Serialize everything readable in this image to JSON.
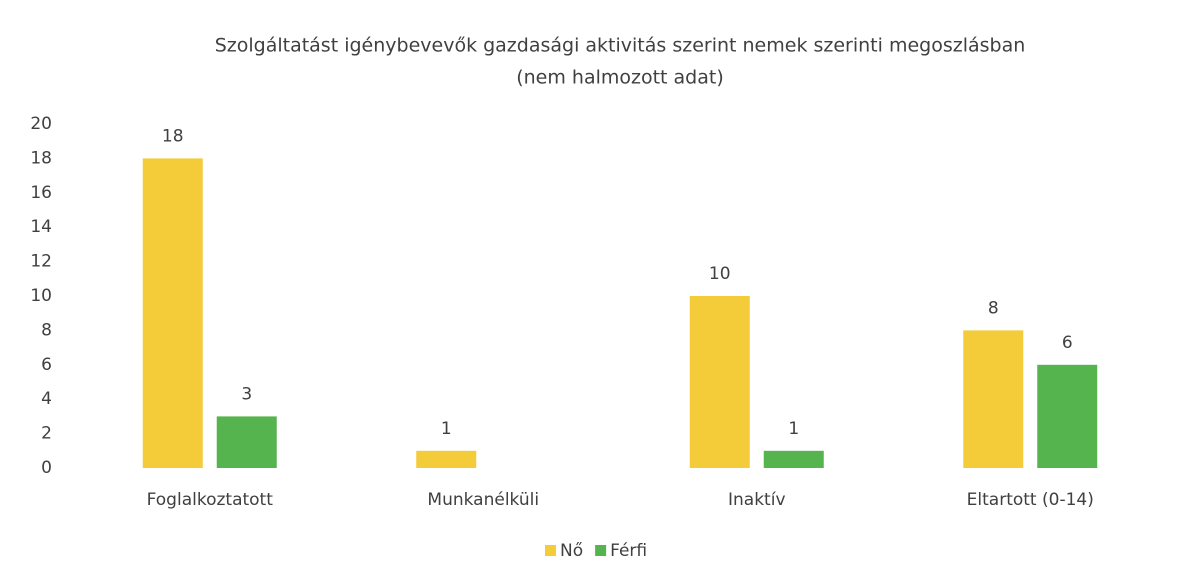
{
  "chart_data": {
    "type": "bar",
    "title": "Szolgáltatást igénybevevők gazdasági aktivitás szerint nemek szerinti megoszlásban",
    "subtitle": "(nem halmozott adat)",
    "categories": [
      "Foglalkoztatott",
      "Munkanélküli",
      "Inaktív",
      "Eltartott (0-14)"
    ],
    "series": [
      {
        "name": "Nő",
        "color": "#f4cc3a",
        "values": [
          18,
          1,
          10,
          8
        ]
      },
      {
        "name": "Férfi",
        "color": "#56b44f",
        "values": [
          3,
          null,
          1,
          6
        ]
      }
    ],
    "ylim": [
      0,
      20
    ],
    "yticks": [
      0,
      2,
      4,
      6,
      8,
      10,
      12,
      14,
      16,
      18,
      20
    ],
    "grid": false,
    "legend": "bottom"
  }
}
